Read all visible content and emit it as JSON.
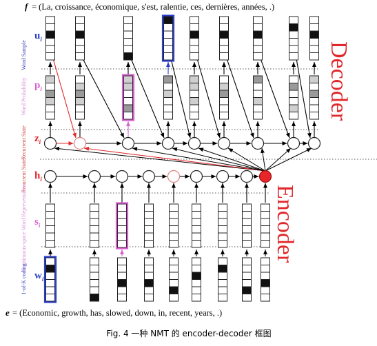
{
  "diagram": {
    "f_label": "f",
    "f_sentence": "= (La, croissance, économique, s'est, ralentie, ces, dernières, années, .)",
    "e_label": "e",
    "e_sentence": "= (Economic, growth, has, slowed, down, in, recent, years, .)",
    "caption": "Fig. 4  一种 NMT 的 encoder-decoder 框图",
    "decoder_label": "Decoder",
    "encoder_label": "Encoder",
    "rows": {
      "word_sample": {
        "side": "Word Sample",
        "var": "u",
        "sub": "i"
      },
      "word_probability": {
        "side": "Word Probability",
        "var": "p",
        "sub": "i"
      },
      "decoder_state": {
        "side": "Recurrent State",
        "var": "z",
        "sub": "i"
      },
      "encoder_state": {
        "side": "Recurrent State",
        "var": "h",
        "sub": "i"
      },
      "continuous": {
        "side": "Continuous-space Word Representation",
        "var": "s",
        "sub": "i"
      },
      "one_hot": {
        "side": "1-of-K coding",
        "var": "w",
        "sub": "i"
      }
    },
    "colors": {
      "red": "#e0282c",
      "blue": "#2b3fc9",
      "pink": "#d95fd3",
      "dark_cell": "#111111",
      "gray_cell": "#9a9a9a",
      "light_cell": "#cfcfcf"
    },
    "decoder_columns": 9,
    "encoder_columns": 9
  }
}
